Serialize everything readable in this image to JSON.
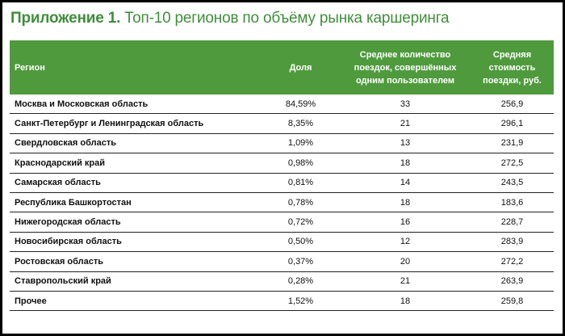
{
  "title": {
    "bold": "Приложение 1.",
    "rest": " Топ-10 регионов по объёму рынка каршеринга"
  },
  "colors": {
    "header_bg": "#4f9a3d",
    "title": "#3f8e3a"
  },
  "table": {
    "headers": [
      "Регион",
      "Доля",
      "Среднее количество поездок, совершённых одним пользователем",
      "Средняя стоимость поездки, руб."
    ],
    "rows": [
      [
        "Москва и Московская область",
        "84,59%",
        "33",
        "256,9"
      ],
      [
        "Санкт-Петербург и Ленинградская область",
        "8,35%",
        "21",
        "296,1"
      ],
      [
        "Свердловская область",
        "1,09%",
        "13",
        "231,9"
      ],
      [
        "Краснодарский край",
        "0,98%",
        "18",
        "272,5"
      ],
      [
        "Самарская область",
        "0,81%",
        "14",
        "243,5"
      ],
      [
        "Республика Башкортостан",
        "0,78%",
        "18",
        "183,6"
      ],
      [
        "Нижегородская область",
        "0,72%",
        "16",
        "228,7"
      ],
      [
        "Новосибирская область",
        "0,50%",
        "12",
        "283,9"
      ],
      [
        "Ростовская область",
        "0,37%",
        "20",
        "272,2"
      ],
      [
        "Ставропольский край",
        "0,28%",
        "21",
        "263,9"
      ],
      [
        "Прочее",
        "1,52%",
        "18",
        "259,8"
      ]
    ]
  }
}
